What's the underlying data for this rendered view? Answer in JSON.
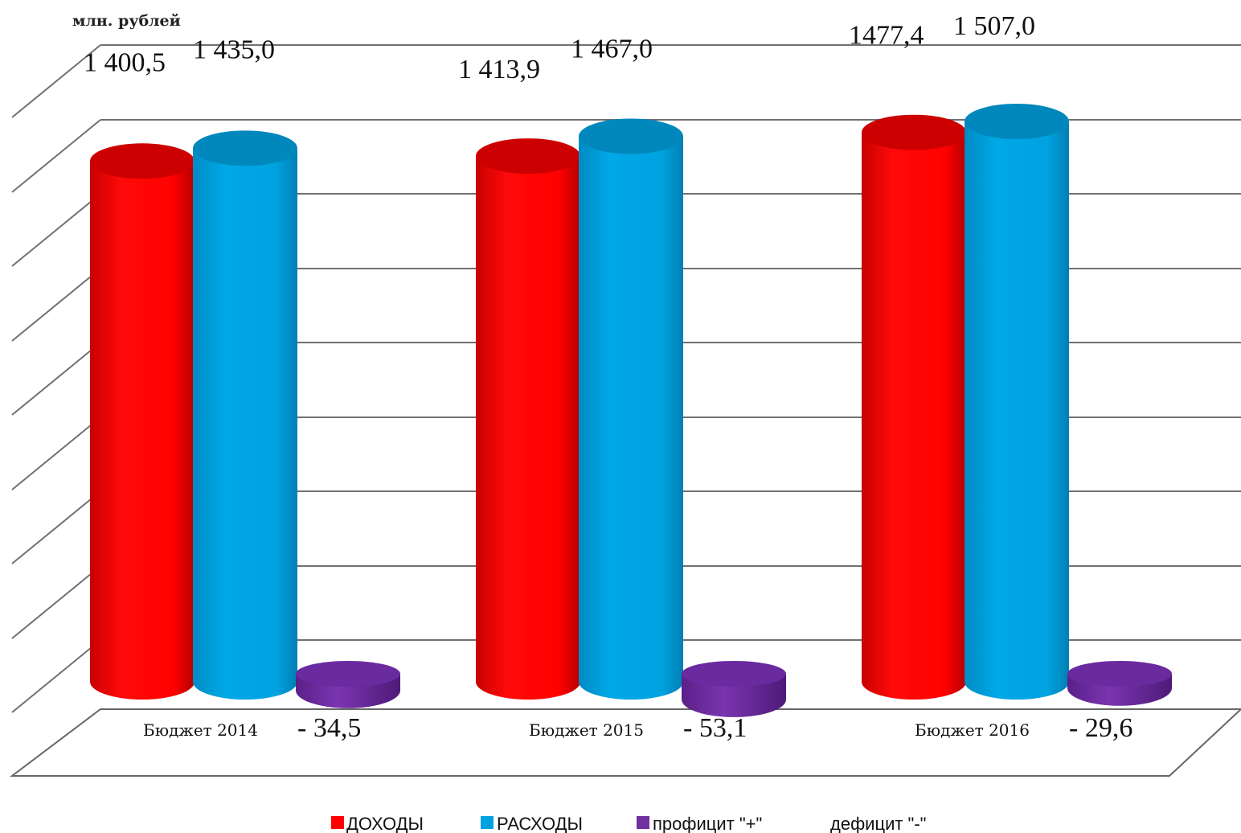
{
  "chart_data": {
    "type": "bar",
    "ylabel": "млн. рублей",
    "categories": [
      "Бюджет 2014",
      "Бюджет 2015",
      "Бюджет 2016"
    ],
    "ylim": [
      0,
      1600
    ],
    "grid": true,
    "legend_position": "bottom",
    "series": [
      {
        "name": "ДОХОДЫ",
        "color": "#ff0000",
        "values": [
          1400.5,
          1413.9,
          1477.4
        ],
        "labels": [
          "1 400,5",
          "1 413,9",
          "1477,4"
        ]
      },
      {
        "name": "РАСХОДЫ",
        "color": "#00a2e0",
        "values": [
          1435.0,
          1467.0,
          1507.0
        ],
        "labels": [
          "1 435,0",
          "1 467,0",
          "1 507,0"
        ]
      },
      {
        "name": "профицит \"+\"",
        "color": "#7030a0",
        "values": [
          -34.5,
          -53.1,
          -29.6
        ],
        "labels": [
          "- 34,5",
          "- 53,1",
          "- 29,6"
        ]
      }
    ],
    "legend_extra": "дефицит \"-\""
  }
}
